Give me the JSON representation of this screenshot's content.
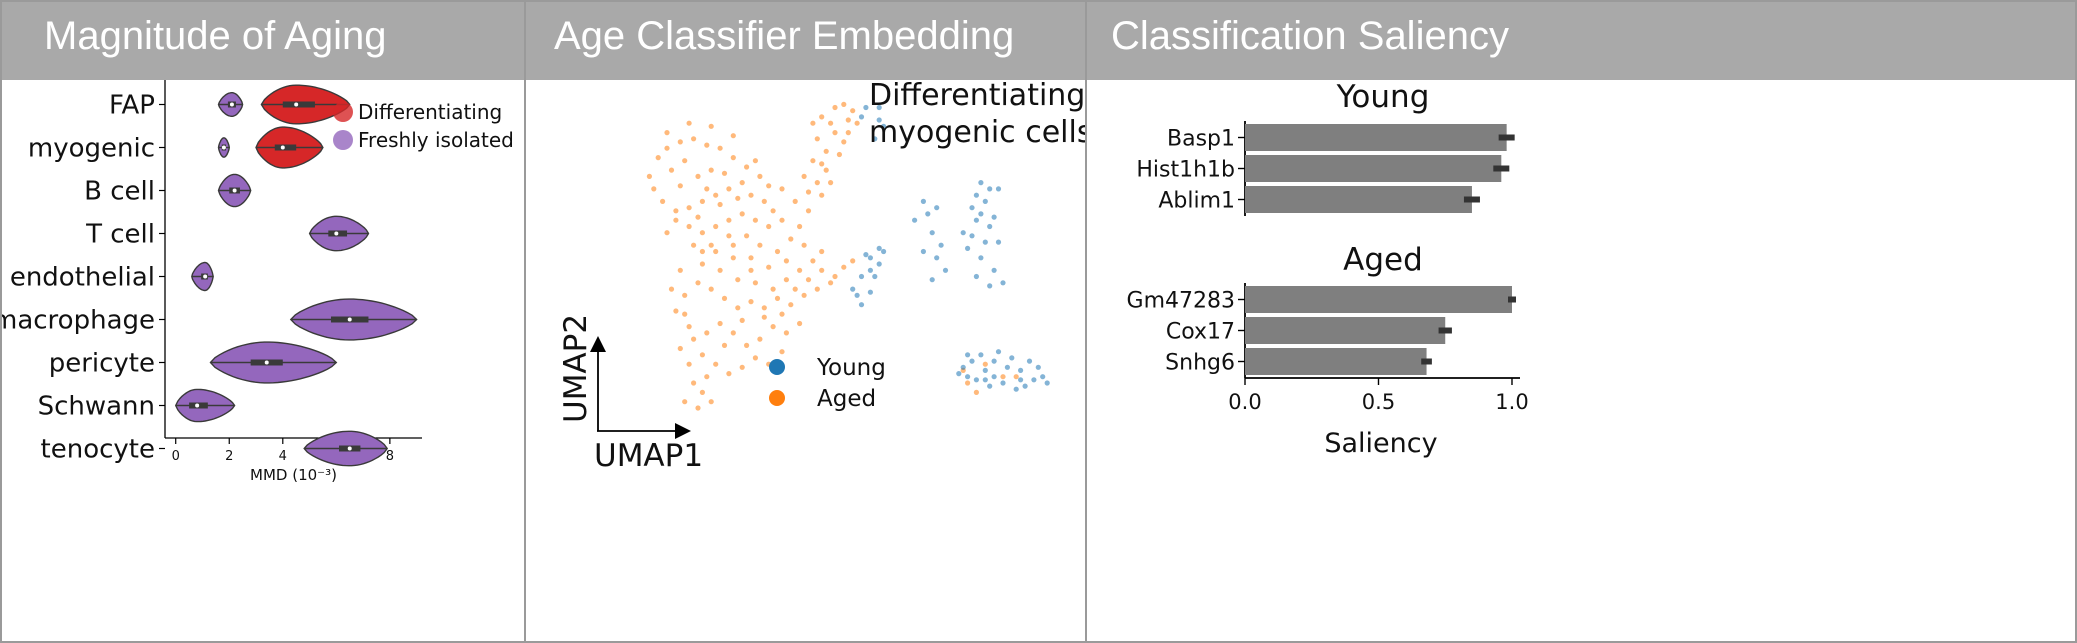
{
  "panels": {
    "magnitude": {
      "title": "Magnitude of Aging"
    },
    "embedding": {
      "title": "Age Classifier Embedding"
    },
    "saliency": {
      "title": "Classification Saliency"
    }
  },
  "chart_data": [
    {
      "type": "violin",
      "xlabel": "MMD (10⁻³)",
      "xlim": [
        -0.4,
        9.2
      ],
      "xticks": [
        0,
        2,
        4,
        6,
        8
      ],
      "categories": [
        "FAP",
        "myogenic",
        "B cell",
        "T cell",
        "endothelial",
        "macrophage",
        "pericyte",
        "Schwann",
        "tenocyte"
      ],
      "legend": {
        "position": "right",
        "entries": [
          {
            "name": "Differentiating",
            "color": "#d62728"
          },
          {
            "name": "Freshly isolated",
            "color": "#9467bd"
          }
        ]
      },
      "violins": [
        {
          "category": "FAP",
          "group": "Freshly isolated",
          "min": 1.6,
          "max": 2.5,
          "median": 2.1,
          "q1": 1.95,
          "q3": 2.25,
          "width": 0.55
        },
        {
          "category": "FAP",
          "group": "Differentiating",
          "min": 3.2,
          "max": 6.5,
          "median": 4.5,
          "q1": 4.0,
          "q3": 5.2,
          "width": 0.9
        },
        {
          "category": "myogenic",
          "group": "Freshly isolated",
          "min": 1.6,
          "max": 2.0,
          "median": 1.8,
          "q1": 1.72,
          "q3": 1.88,
          "width": 0.45
        },
        {
          "category": "myogenic",
          "group": "Differentiating",
          "min": 3.0,
          "max": 5.5,
          "median": 4.0,
          "q1": 3.7,
          "q3": 4.5,
          "width": 0.95
        },
        {
          "category": "B cell",
          "group": "Freshly isolated",
          "min": 1.6,
          "max": 2.8,
          "median": 2.2,
          "q1": 2.0,
          "q3": 2.4,
          "width": 0.75
        },
        {
          "category": "T cell",
          "group": "Freshly isolated",
          "min": 5.0,
          "max": 7.2,
          "median": 6.0,
          "q1": 5.7,
          "q3": 6.4,
          "width": 0.8
        },
        {
          "category": "endothelial",
          "group": "Freshly isolated",
          "min": 0.6,
          "max": 1.4,
          "median": 1.1,
          "q1": 0.95,
          "q3": 1.2,
          "width": 0.65
        },
        {
          "category": "macrophage",
          "group": "Freshly isolated",
          "min": 4.3,
          "max": 9.0,
          "median": 6.5,
          "q1": 5.8,
          "q3": 7.2,
          "width": 0.95
        },
        {
          "category": "pericyte",
          "group": "Freshly isolated",
          "min": 1.3,
          "max": 6.0,
          "median": 3.4,
          "q1": 2.8,
          "q3": 4.0,
          "width": 0.95
        },
        {
          "category": "Schwann",
          "group": "Freshly isolated",
          "min": 0.0,
          "max": 2.2,
          "median": 0.8,
          "q1": 0.5,
          "q3": 1.2,
          "width": 0.75
        },
        {
          "category": "tenocyte",
          "group": "Freshly isolated",
          "min": 4.8,
          "max": 7.9,
          "median": 6.5,
          "q1": 6.1,
          "q3": 6.9,
          "width": 0.8
        }
      ]
    },
    {
      "type": "scatter",
      "title": "Differentiating\nmyogenic cells",
      "xlabel": "UMAP1",
      "ylabel": "UMAP2",
      "xlim": [
        0,
        100
      ],
      "ylim": [
        0,
        100
      ],
      "series": [
        {
          "name": "Young",
          "color": "#1f77b4",
          "points": [
            [
              57,
              96
            ],
            [
              60,
              92
            ],
            [
              59,
              86
            ],
            [
              61,
              90
            ],
            [
              60,
              96
            ],
            [
              56,
              93
            ],
            [
              58,
              44
            ],
            [
              58,
              48
            ],
            [
              60,
              46
            ],
            [
              57,
              49
            ],
            [
              59,
              42
            ],
            [
              61,
              50
            ],
            [
              56,
              42
            ],
            [
              60,
              51
            ],
            [
              55,
              36
            ],
            [
              56,
              33
            ],
            [
              58,
              37
            ],
            [
              54,
              38
            ],
            [
              70,
              66
            ],
            [
              71,
              62
            ],
            [
              68,
              60
            ],
            [
              72,
              56
            ],
            [
              73,
              48
            ],
            [
              74,
              52
            ],
            [
              70,
              50
            ],
            [
              75,
              44
            ],
            [
              73,
              64
            ],
            [
              72,
              41
            ],
            [
              83,
              72
            ],
            [
              85,
              70
            ],
            [
              84,
              66
            ],
            [
              86,
              61
            ],
            [
              82,
              60
            ],
            [
              81,
              55
            ],
            [
              80,
              51
            ],
            [
              84,
              53
            ],
            [
              85,
              58
            ],
            [
              87,
              70
            ],
            [
              81,
              64
            ],
            [
              83,
              48
            ],
            [
              86,
              44
            ],
            [
              88,
              40
            ],
            [
              85,
              39
            ],
            [
              82,
              42
            ],
            [
              79,
              56
            ],
            [
              82,
              68
            ],
            [
              87,
              53
            ],
            [
              83,
              62
            ],
            [
              80,
              10
            ],
            [
              82,
              9
            ],
            [
              85,
              7
            ],
            [
              88,
              8
            ],
            [
              91,
              6
            ],
            [
              93,
              7
            ],
            [
              95,
              9
            ],
            [
              97,
              10
            ],
            [
              96,
              13
            ],
            [
              92,
              12
            ],
            [
              89,
              13
            ],
            [
              86,
              15
            ],
            [
              84,
              12
            ],
            [
              81,
              15
            ],
            [
              79,
              13
            ],
            [
              78,
              11
            ],
            [
              83,
              17
            ],
            [
              87,
              18
            ],
            [
              90,
              16
            ],
            [
              94,
              15
            ],
            [
              86,
              10
            ],
            [
              92,
              9
            ],
            [
              80,
              17
            ],
            [
              84,
              9
            ],
            [
              98,
              8
            ]
          ]
        },
        {
          "name": "Aged",
          "color": "#ff7f0e",
          "points": [
            [
              10,
              80
            ],
            [
              12,
              83
            ],
            [
              15,
              85
            ],
            [
              18,
              86
            ],
            [
              21,
              84
            ],
            [
              24,
              83
            ],
            [
              27,
              80
            ],
            [
              30,
              77
            ],
            [
              33,
              74
            ],
            [
              29,
              72
            ],
            [
              26,
              70
            ],
            [
              23,
              68
            ],
            [
              20,
              66
            ],
            [
              17,
              64
            ],
            [
              14,
              63
            ],
            [
              11,
              66
            ],
            [
              9,
              70
            ],
            [
              8,
              74
            ],
            [
              13,
              76
            ],
            [
              16,
              79
            ],
            [
              19,
              74
            ],
            [
              22,
              76
            ],
            [
              25,
              75
            ],
            [
              28,
              67
            ],
            [
              31,
              68
            ],
            [
              34,
              66
            ],
            [
              36,
              63
            ],
            [
              38,
              60
            ],
            [
              35,
              58
            ],
            [
              32,
              60
            ],
            [
              29,
              62
            ],
            [
              26,
              60
            ],
            [
              23,
              58
            ],
            [
              20,
              56
            ],
            [
              17,
              58
            ],
            [
              14,
              60
            ],
            [
              12,
              56
            ],
            [
              18,
              52
            ],
            [
              22,
              52
            ],
            [
              26,
              55
            ],
            [
              30,
              55
            ],
            [
              33,
              52
            ],
            [
              37,
              50
            ],
            [
              40,
              54
            ],
            [
              42,
              58
            ],
            [
              44,
              63
            ],
            [
              41,
              66
            ],
            [
              38,
              70
            ],
            [
              35,
              71
            ],
            [
              32,
              79
            ],
            [
              27,
              87
            ],
            [
              22,
              90
            ],
            [
              17,
              91
            ],
            [
              12,
              88
            ],
            [
              15,
              71
            ],
            [
              21,
              70
            ],
            [
              24,
              65
            ],
            [
              19,
              61
            ],
            [
              27,
              52
            ],
            [
              31,
              48
            ],
            [
              46,
              72
            ],
            [
              47,
              78
            ],
            [
              48,
              82
            ],
            [
              46,
              86
            ],
            [
              45,
              91
            ],
            [
              47,
              93
            ],
            [
              50,
              96
            ],
            [
              52,
              97
            ],
            [
              54,
              95
            ],
            [
              55,
              91
            ],
            [
              53,
              88
            ],
            [
              50,
              88
            ],
            [
              49,
              91
            ],
            [
              52,
              85
            ],
            [
              51,
              81
            ],
            [
              48,
              76
            ],
            [
              49,
              72
            ],
            [
              47,
              68
            ],
            [
              44,
              69
            ],
            [
              43,
              74
            ],
            [
              45,
              79
            ],
            [
              53,
              92
            ],
            [
              20,
              46
            ],
            [
              24,
              44
            ],
            [
              28,
              41
            ],
            [
              32,
              40
            ],
            [
              36,
              38
            ],
            [
              39,
              41
            ],
            [
              42,
              44
            ],
            [
              45,
              47
            ],
            [
              47,
              44
            ],
            [
              50,
              42
            ],
            [
              52,
              45
            ],
            [
              54,
              47
            ],
            [
              49,
              40
            ],
            [
              46,
              38
            ],
            [
              43,
              36
            ],
            [
              40,
              33
            ],
            [
              37,
              35
            ],
            [
              34,
              32
            ],
            [
              31,
              34
            ],
            [
              28,
              32
            ],
            [
              25,
              35
            ],
            [
              22,
              38
            ],
            [
              19,
              40
            ],
            [
              16,
              36
            ],
            [
              14,
              31
            ],
            [
              17,
              26
            ],
            [
              21,
              24
            ],
            [
              24,
              27
            ],
            [
              27,
              24
            ],
            [
              30,
              20
            ],
            [
              33,
              22
            ],
            [
              36,
              26
            ],
            [
              39,
              24
            ],
            [
              42,
              27
            ],
            [
              38,
              18
            ],
            [
              35,
              14
            ],
            [
              32,
              16
            ],
            [
              29,
              13
            ],
            [
              26,
              11
            ],
            [
              23,
              14
            ],
            [
              20,
              17
            ],
            [
              17,
              14
            ],
            [
              15,
              19
            ],
            [
              18,
              8
            ],
            [
              20,
              5
            ],
            [
              22,
              2
            ],
            [
              16,
              2
            ],
            [
              19,
              0
            ],
            [
              21,
              10
            ],
            [
              25,
              20
            ],
            [
              29,
              28
            ],
            [
              34,
              29
            ],
            [
              38,
              30
            ],
            [
              41,
              38
            ],
            [
              44,
              41
            ],
            [
              47,
              50
            ],
            [
              43,
              52
            ],
            [
              39,
              47
            ],
            [
              35,
              45
            ],
            [
              31,
              44
            ],
            [
              27,
              48
            ],
            [
              23,
              50
            ],
            [
              20,
              50
            ],
            [
              15,
              44
            ],
            [
              13,
              38
            ],
            [
              16,
              30
            ],
            [
              18,
              22
            ],
            [
              79,
              12
            ],
            [
              80,
              8
            ],
            [
              84,
              14
            ],
            [
              88,
              10
            ],
            [
              82,
              5
            ],
            [
              91,
              10
            ]
          ]
        }
      ]
    },
    {
      "type": "bar",
      "orientation": "horizontal",
      "xlabel": "Saliency",
      "xlim": [
        0,
        1.03
      ],
      "xticks": [
        0,
        0.5,
        1.0
      ],
      "xtick_labels": [
        "0.0",
        "0.5",
        "1.0"
      ],
      "bar_color": "#7f7f7f",
      "groups": [
        {
          "title": "Young",
          "categories": [
            "Basp1",
            "Hist1h1b",
            "Ablim1"
          ],
          "values": [
            0.98,
            0.96,
            0.85
          ],
          "errors": [
            0.03,
            0.03,
            0.03
          ]
        },
        {
          "title": "Aged",
          "categories": [
            "Gm47283",
            "Cox17",
            "Snhg6"
          ],
          "values": [
            1.0,
            0.75,
            0.68
          ],
          "errors": [
            0.015,
            0.025,
            0.02
          ]
        }
      ]
    }
  ]
}
